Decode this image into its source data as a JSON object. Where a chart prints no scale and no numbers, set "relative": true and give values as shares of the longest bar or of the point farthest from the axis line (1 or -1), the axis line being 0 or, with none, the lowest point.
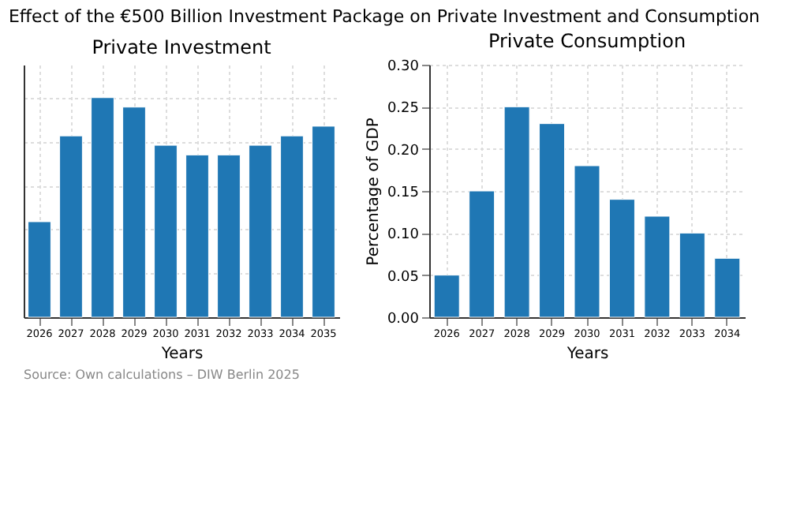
{
  "chart_data": [
    {
      "type": "other",
      "title": "Effect of the €500 Billion Investment Package on Private Investment and Consumption",
      "annotations": [
        "Source: Own calculations – DIW Berlin 2025"
      ]
    },
    {
      "type": "bar",
      "title": "Private Investment",
      "xlabel": "Years",
      "categories": [
        "2026",
        "2027",
        "2028",
        "2029",
        "2030",
        "2031",
        "2032",
        "2033",
        "2034",
        "2035"
      ],
      "values": [
        0.435,
        0.826,
        1,
        0.957,
        0.783,
        0.739,
        0.739,
        0.783,
        0.826,
        0.87
      ],
      "color": "#1f77b4",
      "relative": true,
      "grid": true
    },
    {
      "type": "bar",
      "title": "Private Consumption",
      "xlabel": "Years",
      "ylabel": "Percentage of GDP",
      "categories": [
        "2026",
        "2027",
        "2028",
        "2029",
        "2030",
        "2031",
        "2032",
        "2033",
        "2034"
      ],
      "values": [
        0.05,
        0.15,
        0.25,
        0.23,
        0.18,
        0.14,
        0.12,
        0.1,
        0.07
      ],
      "color": "#1f77b4",
      "ylim": [
        0,
        0.3
      ],
      "yticks": [
        {
          "value": 0,
          "label": "0.00"
        },
        {
          "value": 0.05,
          "label": "0.05"
        },
        {
          "value": 0.1,
          "label": "0.10"
        },
        {
          "value": 0.15,
          "label": "0.15"
        },
        {
          "value": 0.2,
          "label": "0.20"
        },
        {
          "value": 0.25,
          "label": "0.25"
        },
        {
          "value": 0.3,
          "label": "0.30"
        }
      ],
      "grid": true
    }
  ]
}
